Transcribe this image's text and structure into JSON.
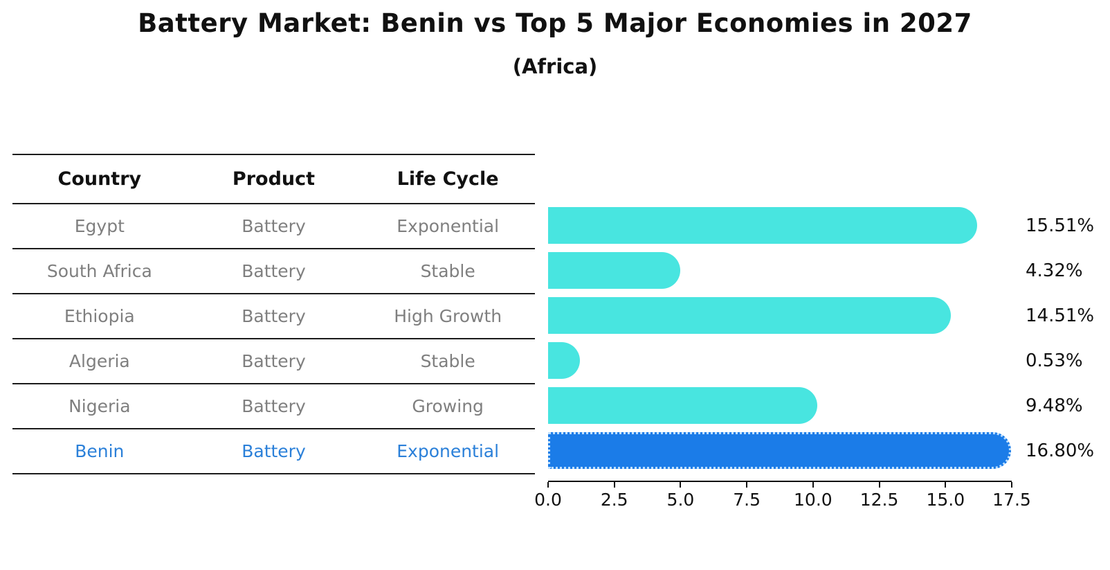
{
  "page_title": "Battery Market: Benin vs Top 5 Major Economies in 2027",
  "subtitle": "(Africa)",
  "table": {
    "headers": [
      "Country",
      "Product",
      "Life Cycle"
    ],
    "rows": [
      {
        "country": "Egypt",
        "product": "Battery",
        "life_cycle": "Exponential",
        "highlighted": false
      },
      {
        "country": "South Africa",
        "product": "Battery",
        "life_cycle": "Stable",
        "highlighted": false
      },
      {
        "country": "Ethiopia",
        "product": "Battery",
        "life_cycle": "High Growth",
        "highlighted": false
      },
      {
        "country": "Algeria",
        "product": "Battery",
        "life_cycle": "Stable",
        "highlighted": false
      },
      {
        "country": "Nigeria",
        "product": "Battery",
        "life_cycle": "Growing",
        "highlighted": false
      },
      {
        "country": "Benin",
        "product": "Battery",
        "life_cycle": "Exponential",
        "highlighted": true
      }
    ]
  },
  "chart_data": {
    "type": "bar",
    "orientation": "horizontal",
    "title": "Battery Market: Benin vs Top 5 Major Economies in 2027",
    "subtitle": "(Africa)",
    "categories": [
      "Egypt",
      "South Africa",
      "Ethiopia",
      "Algeria",
      "Nigeria",
      "Benin"
    ],
    "values": [
      15.51,
      4.32,
      14.51,
      0.53,
      9.48,
      16.8
    ],
    "value_labels": [
      "15.51%",
      "4.32%",
      "14.51%",
      "0.53%",
      "9.48%",
      "16.80%"
    ],
    "x_ticks": [
      "0.0",
      "2.5",
      "5.0",
      "7.5",
      "10.0",
      "12.5",
      "15.0",
      "17.5"
    ],
    "xlim": [
      0,
      17.5
    ],
    "unit": "percent",
    "grid": false,
    "legend": false,
    "bar_color": "#48E5E0",
    "highlight_color": "#1B7CE8",
    "highlight_index": 5
  },
  "colors": {
    "text_primary": "#111111",
    "text_muted": "#7F7F7F",
    "highlight_text": "#2B80D9",
    "rule": "#1C1C1C"
  }
}
